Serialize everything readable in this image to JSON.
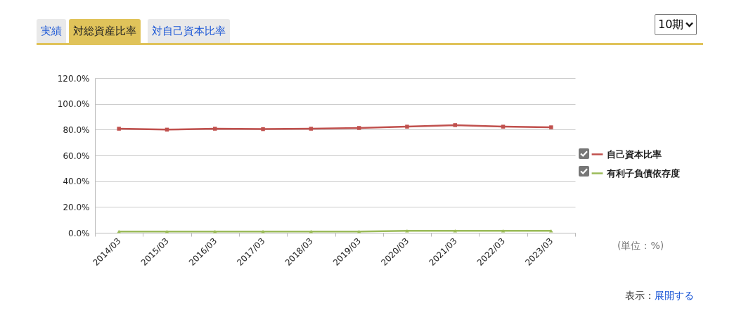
{
  "chart_data": {
    "type": "line",
    "categories": [
      "2014/03",
      "2015/03",
      "2016/03",
      "2017/03",
      "2018/03",
      "2019/03",
      "2020/03",
      "2021/03",
      "2022/03",
      "2023/03"
    ],
    "series": [
      {
        "name": "自己資本比率",
        "color": "#c0504d",
        "marker": "square",
        "values": [
          80.7,
          80.0,
          80.7,
          80.4,
          80.7,
          81.3,
          82.3,
          83.5,
          82.3,
          81.8
        ]
      },
      {
        "name": "有利子負債依存度",
        "color": "#9bbb59",
        "marker": "triangle",
        "values": [
          1.0,
          1.0,
          1.0,
          1.0,
          1.0,
          1.0,
          1.5,
          1.5,
          1.5,
          1.5
        ]
      }
    ],
    "ylim": [
      0,
      120
    ],
    "yticks": [
      {
        "value": 0,
        "label": "0.0%"
      },
      {
        "value": 20,
        "label": "20.0%"
      },
      {
        "value": 40,
        "label": "40.0%"
      },
      {
        "value": 60,
        "label": "60.0%"
      },
      {
        "value": 80,
        "label": "80.0%"
      },
      {
        "value": 100,
        "label": "100.0%"
      },
      {
        "value": 120,
        "label": "120.0%"
      }
    ],
    "grid": "y",
    "legend": "right",
    "line_style": "solid",
    "annotations": [
      "実績",
      "対総資産比率",
      "対自己資本比率",
      "10期",
      "(単位：%)",
      "表示：",
      "展開する"
    ]
  }
}
